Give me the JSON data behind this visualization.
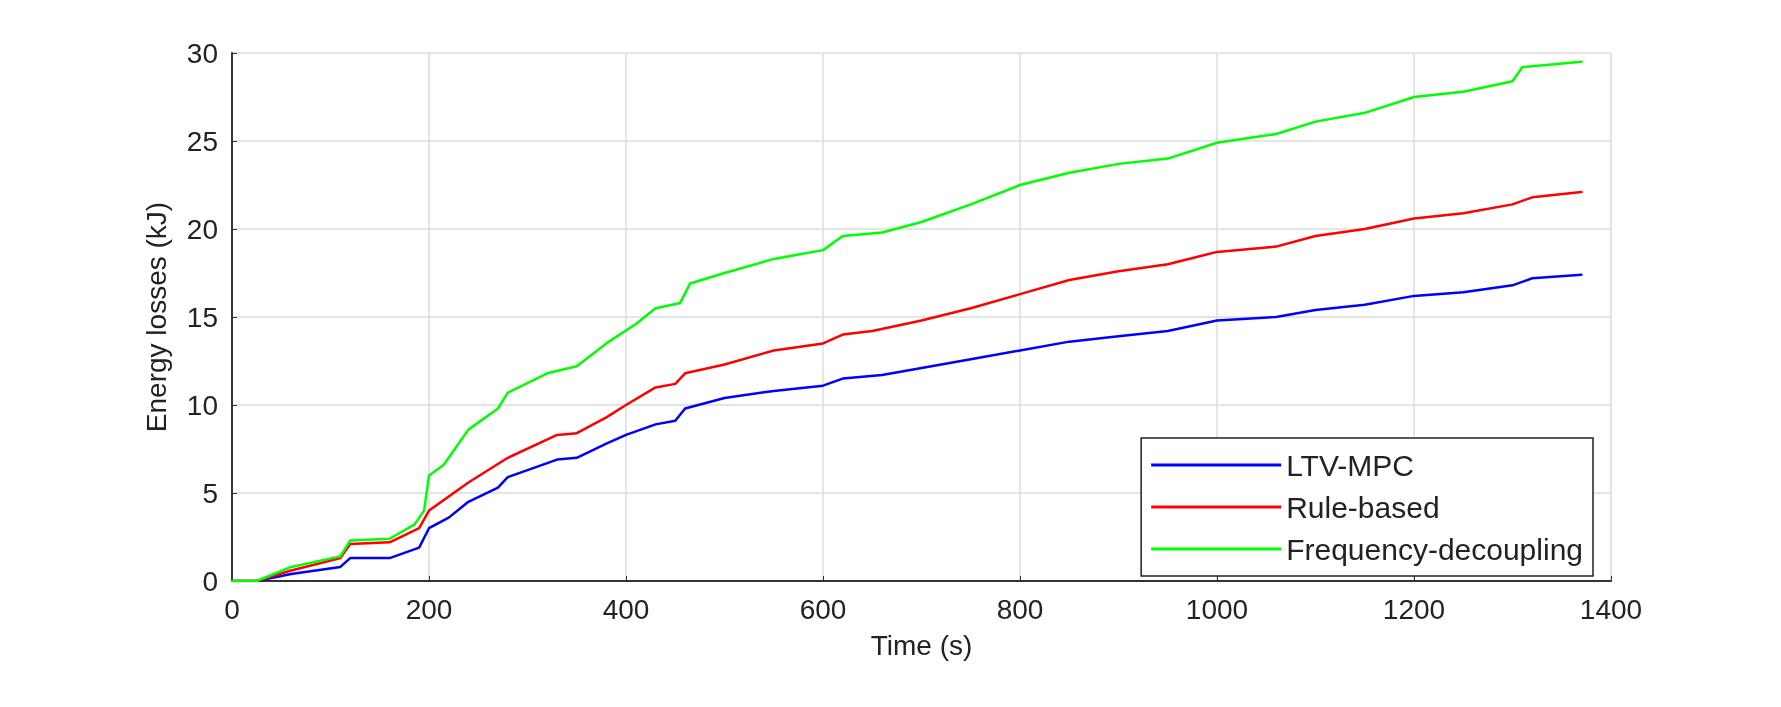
{
  "chart_data": {
    "type": "line",
    "xlabel": "Time (s)",
    "ylabel": "Energy losses (kJ)",
    "xlim": [
      0,
      1400
    ],
    "xticks": [
      0,
      200,
      400,
      600,
      800,
      1000,
      1200,
      1400
    ],
    "ylim": [
      0,
      30
    ],
    "yticks": [
      0,
      5,
      10,
      15,
      20,
      25,
      30
    ],
    "grid": true,
    "legend": "bottom right",
    "marker": "none",
    "line_style": "solid",
    "series": [
      {
        "name": "LTV-MPC",
        "color": "#0000ff",
        "x": [
          0,
          25,
          60,
          110,
          120,
          160,
          190,
          200,
          220,
          240,
          270,
          280,
          330,
          350,
          380,
          400,
          430,
          450,
          460,
          500,
          550,
          600,
          620,
          660,
          700,
          750,
          800,
          850,
          900,
          950,
          1000,
          1060,
          1100,
          1150,
          1200,
          1250,
          1300,
          1320,
          1370
        ],
        "values": [
          0,
          0,
          0.4,
          0.8,
          1.3,
          1.3,
          1.9,
          3,
          3.6,
          4.5,
          5.3,
          5.9,
          6.9,
          7,
          7.8,
          8.3,
          8.9,
          9.1,
          9.8,
          10.4,
          10.8,
          11.1,
          11.5,
          11.7,
          12.1,
          12.6,
          13.1,
          13.6,
          13.9,
          14.2,
          14.8,
          15,
          15.4,
          15.7,
          16.2,
          16.4,
          16.8,
          17.2,
          17.4
        ]
      },
      {
        "name": "Rule-based",
        "color": "#ff0000",
        "x": [
          0,
          25,
          60,
          110,
          120,
          160,
          190,
          200,
          240,
          280,
          330,
          350,
          380,
          400,
          430,
          450,
          460,
          500,
          550,
          600,
          620,
          650,
          700,
          750,
          800,
          850,
          900,
          950,
          1000,
          1060,
          1100,
          1150,
          1200,
          1250,
          1300,
          1320,
          1370
        ],
        "values": [
          0,
          0,
          0.6,
          1.3,
          2.1,
          2.2,
          3,
          4,
          5.6,
          7,
          8.3,
          8.4,
          9.3,
          10,
          11,
          11.2,
          11.8,
          12.3,
          13.1,
          13.5,
          14,
          14.2,
          14.8,
          15.5,
          16.3,
          17.1,
          17.6,
          18,
          18.7,
          19,
          19.6,
          20,
          20.6,
          20.9,
          21.4,
          21.8,
          22.1
        ]
      },
      {
        "name": "Frequency-decoupling",
        "color": "#00ff00",
        "x": [
          0,
          25,
          60,
          110,
          120,
          160,
          185,
          195,
          200,
          215,
          240,
          270,
          280,
          320,
          350,
          380,
          410,
          430,
          455,
          465,
          500,
          550,
          600,
          620,
          660,
          700,
          750,
          800,
          850,
          900,
          950,
          1000,
          1060,
          1100,
          1150,
          1200,
          1250,
          1300,
          1310,
          1370
        ],
        "values": [
          0,
          0,
          0.8,
          1.4,
          2.3,
          2.4,
          3.2,
          4,
          6,
          6.6,
          8.6,
          9.8,
          10.7,
          11.8,
          12.2,
          13.5,
          14.6,
          15.5,
          15.8,
          16.9,
          17.5,
          18.3,
          18.8,
          19.6,
          19.8,
          20.4,
          21.4,
          22.5,
          23.2,
          23.7,
          24,
          24.9,
          25.4,
          26.1,
          26.6,
          27.5,
          27.8,
          28.4,
          29.2,
          29.5
        ]
      }
    ]
  }
}
